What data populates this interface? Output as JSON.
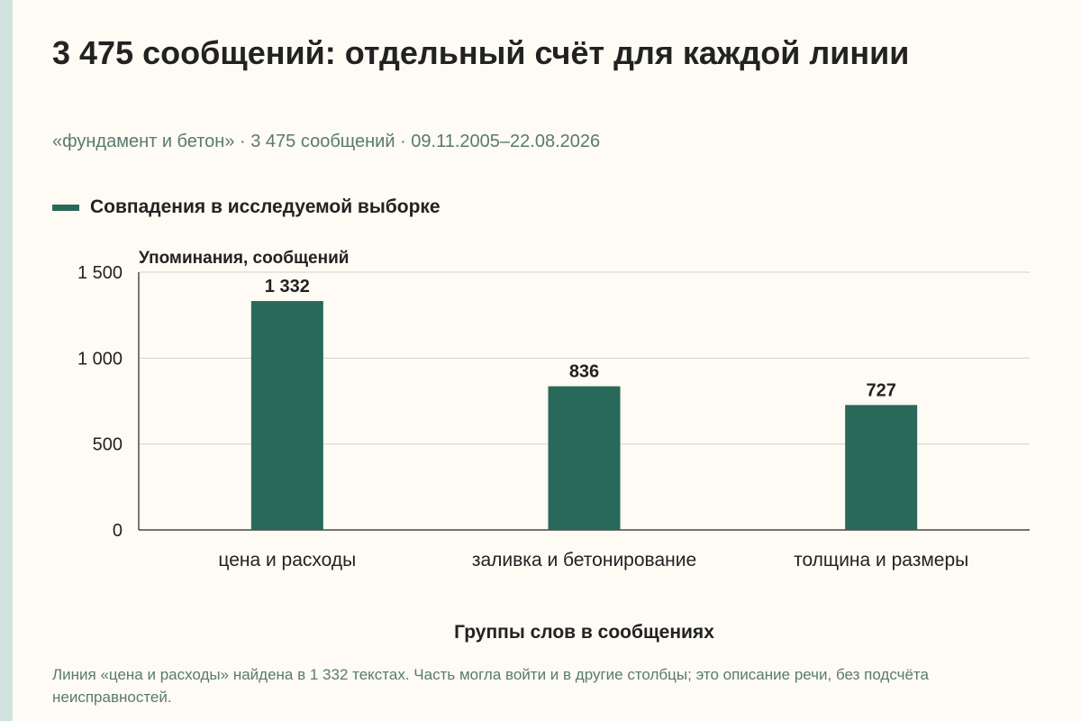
{
  "header": {
    "title": "3 475 сообщений: отдельный счёт для каждой линии",
    "subtitle": "«фундамент и бетон» · 3 475 сообщений · 09.11.2005–22.08.2026"
  },
  "footnote": "Линия «цена и расходы» найдена в 1 332 текстах. Часть могла войти и в другие столбцы; это описание речи, без подсчёта неисправностей.",
  "colors": {
    "bar": "#28695a",
    "background": "#fdfbf3",
    "accent_strip": "#cfe3dc",
    "muted_text": "#5a7a6f"
  },
  "chart_data": {
    "type": "bar",
    "categories": [
      "цена и расходы",
      "заливка и бетонирование",
      "толщина и размеры"
    ],
    "series": [
      {
        "name": "Совпадения в исследуемой выборке",
        "values": [
          1332,
          836,
          727
        ]
      }
    ],
    "data_labels": [
      "1 332",
      "836",
      "727"
    ],
    "ylabel": "Упоминания, сообщений",
    "xlabel": "Группы слов в сообщениях",
    "ylim": [
      0,
      1500
    ],
    "yticks": [
      0,
      500,
      1000,
      1500
    ],
    "ytick_labels": [
      "0",
      "500",
      "1 000",
      "1 500"
    ],
    "grid": true,
    "legend_position": "top-left"
  }
}
